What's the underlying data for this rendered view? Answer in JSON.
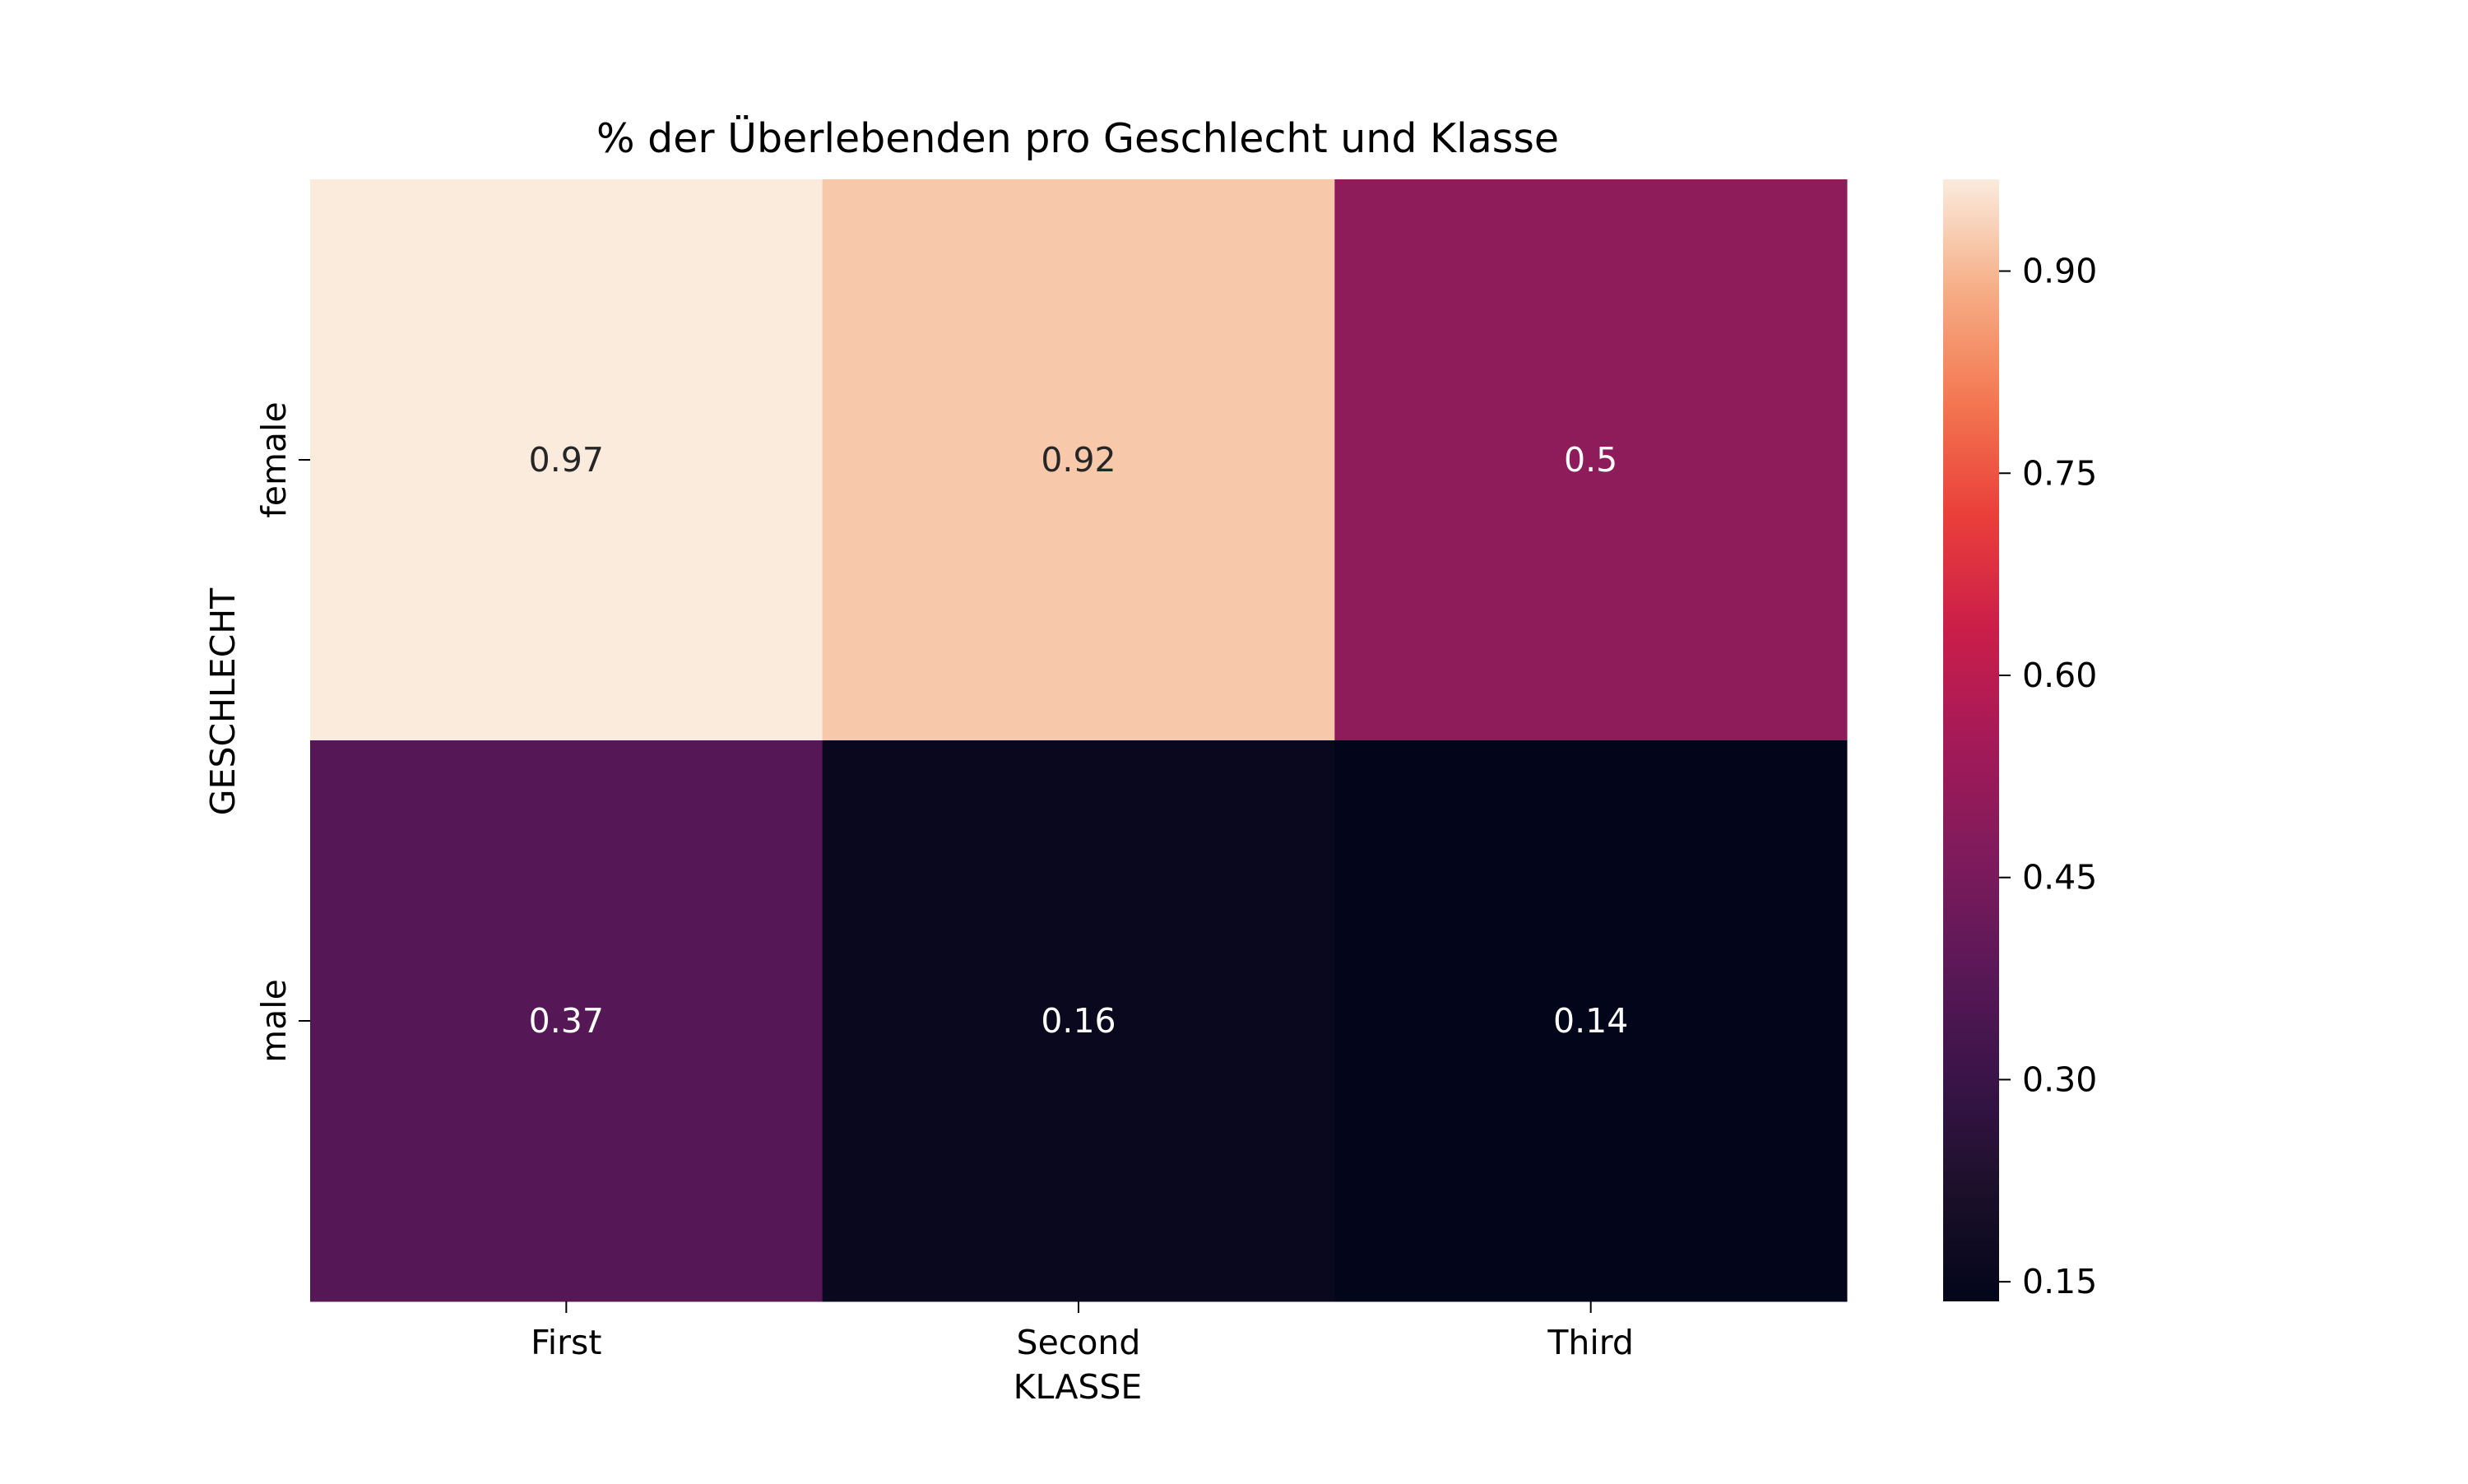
{
  "chart_data": {
    "type": "heatmap",
    "title": "% der Überlebenden pro Geschlecht und Klasse",
    "xlabel": "KLASSE",
    "ylabel": "GESCHLECHT",
    "x_categories": [
      "First",
      "Second",
      "Third"
    ],
    "y_categories": [
      "female",
      "male"
    ],
    "values": [
      [
        0.9680851063829787,
        0.9210526315789473,
        0.5
      ],
      [
        0.36885245901639346,
        0.1574074074074074,
        0.13544668587896252
      ]
    ],
    "annotations": [
      [
        "0.97",
        "0.92",
        "0.5"
      ],
      [
        "0.37",
        "0.16",
        "0.14"
      ]
    ],
    "colormap": "rocket",
    "colorbar": {
      "vmin": 0.13544668587896252,
      "vmax": 0.9680851063829787,
      "ticks": [
        0.15,
        0.3,
        0.45,
        0.6,
        0.75,
        0.9
      ],
      "tick_labels": [
        "0.15",
        "0.30",
        "0.45",
        "0.60",
        "0.75",
        "0.90"
      ]
    },
    "grid": false
  }
}
